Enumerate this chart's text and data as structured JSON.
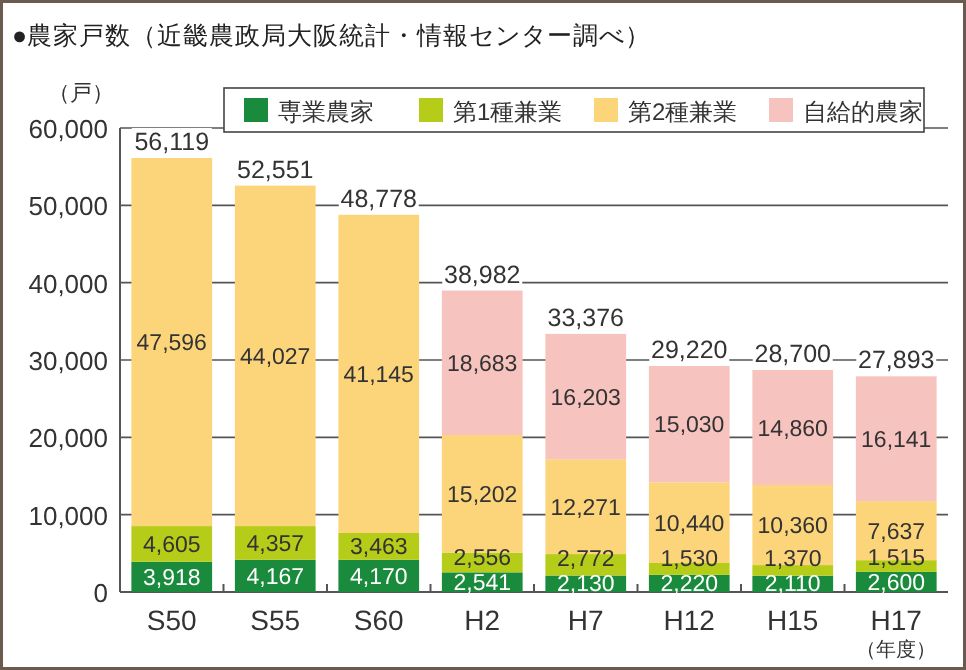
{
  "chart_data": {
    "type": "bar",
    "stacked": true,
    "title": "●農家戸数（近畿農政局大阪統計・情報センター調べ）",
    "ylabel": "（戸）",
    "xlabel": "（年度）",
    "categories": [
      "S50",
      "S55",
      "S60",
      "H2",
      "H7",
      "H12",
      "H15",
      "H17"
    ],
    "series": [
      {
        "name": "専業農家",
        "color": "#1a8a3c",
        "values": [
          3918,
          4167,
          4170,
          2541,
          2130,
          2220,
          2110,
          2600
        ],
        "value_labels": [
          "3,918",
          "4,167",
          "4,170",
          "2,541",
          "2,130",
          "2,220",
          "2,110",
          "2,600"
        ]
      },
      {
        "name": "第1種兼業",
        "color": "#b5cc18",
        "values": [
          4605,
          4357,
          3463,
          2556,
          2772,
          1530,
          1370,
          1515
        ],
        "value_labels": [
          "4,605",
          "4,357",
          "3,463",
          "2,556",
          "2,772",
          "1,530",
          "1,370",
          "1,515"
        ]
      },
      {
        "name": "第2種兼業",
        "color": "#fcd57a",
        "values": [
          47596,
          44027,
          41145,
          15202,
          12271,
          10440,
          10360,
          7637
        ],
        "value_labels": [
          "47,596",
          "44,027",
          "41,145",
          "15,202",
          "12,271",
          "10,440",
          "10,360",
          "7,637"
        ]
      },
      {
        "name": "自給的農家",
        "color": "#f7c3bf",
        "values": [
          null,
          null,
          null,
          18683,
          16203,
          15030,
          14860,
          16141
        ],
        "value_labels": [
          null,
          null,
          null,
          "18,683",
          "16,203",
          "15,030",
          "14,860",
          "16,141"
        ]
      }
    ],
    "totals": [
      "56,119",
      "52,551",
      "48,778",
      "38,982",
      "33,376",
      "29,220",
      "28,700",
      "27,893"
    ],
    "ylim": [
      0,
      60000
    ],
    "yticks": [
      {
        "value": 0,
        "label": "0"
      },
      {
        "value": 10000,
        "label": "10,000"
      },
      {
        "value": 20000,
        "label": "20,000"
      },
      {
        "value": 30000,
        "label": "30,000"
      },
      {
        "value": 40000,
        "label": "40,000"
      },
      {
        "value": 50000,
        "label": "50,000"
      },
      {
        "value": 60000,
        "label": "60,000"
      }
    ],
    "grid": "y",
    "legend": "top right"
  }
}
